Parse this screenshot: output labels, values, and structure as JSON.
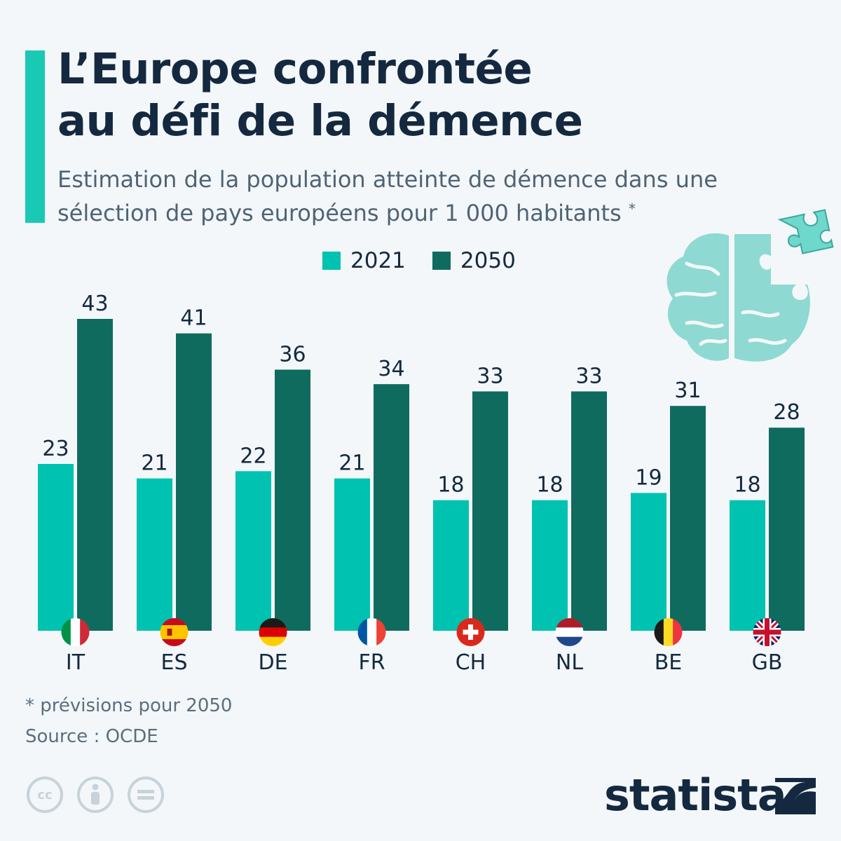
{
  "header": {
    "title_line1": "L’Europe confrontée",
    "title_line2": "au défi de la démence",
    "subtitle_line1": "Estimation de la population atteinte de démence dans une",
    "subtitle_line2": "sélection de pays européens pour 1 000 habitants",
    "subtitle_marker": "*"
  },
  "chart_data": {
    "type": "bar",
    "categories": [
      "IT",
      "ES",
      "DE",
      "FR",
      "CH",
      "NL",
      "BE",
      "GB"
    ],
    "series": [
      {
        "name": "2021",
        "values": [
          23,
          21,
          22,
          21,
          18,
          18,
          19,
          18
        ],
        "color": "#00c2b0"
      },
      {
        "name": "2050",
        "values": [
          43,
          41,
          36,
          34,
          33,
          33,
          31,
          28
        ],
        "color": "#106b5f"
      }
    ],
    "ylim": [
      0,
      43
    ],
    "grid": false,
    "legend_position": "top",
    "data_labels": true,
    "flags": [
      "italy-flag",
      "spain-flag",
      "germany-flag",
      "france-flag",
      "switzerland-flag",
      "netherlands-flag",
      "belgium-flag",
      "uk-flag"
    ]
  },
  "footer": {
    "note": "* prévisions pour 2050",
    "source": "Source : OCDE",
    "brand": "statista",
    "license_icons": [
      "cc-icon",
      "attribution-icon",
      "no-derivatives-icon"
    ],
    "cc_text": "cc"
  },
  "colors": {
    "accent": "#1ac9b4",
    "title": "#14293f",
    "text": "#4f6375",
    "brain": "#8ed9d1"
  }
}
